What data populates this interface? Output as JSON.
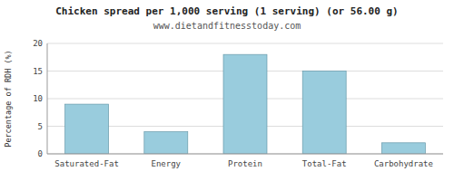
{
  "chart_data": {
    "type": "bar",
    "title": "Chicken spread per 1,000 serving (1 serving) (or 56.00 g)",
    "subtitle": "www.dietandfitnesstoday.com",
    "categories": [
      "Saturated-Fat",
      "Energy",
      "Protein",
      "Total-Fat",
      "Carbohydrate"
    ],
    "values": [
      9,
      4,
      18,
      15,
      2
    ],
    "color": "#99CCDD",
    "ylabel": "Percentage of RDH (%)",
    "ylim": [
      0,
      20
    ],
    "yticks": [
      0,
      5,
      10,
      15,
      20
    ],
    "grid": true
  }
}
